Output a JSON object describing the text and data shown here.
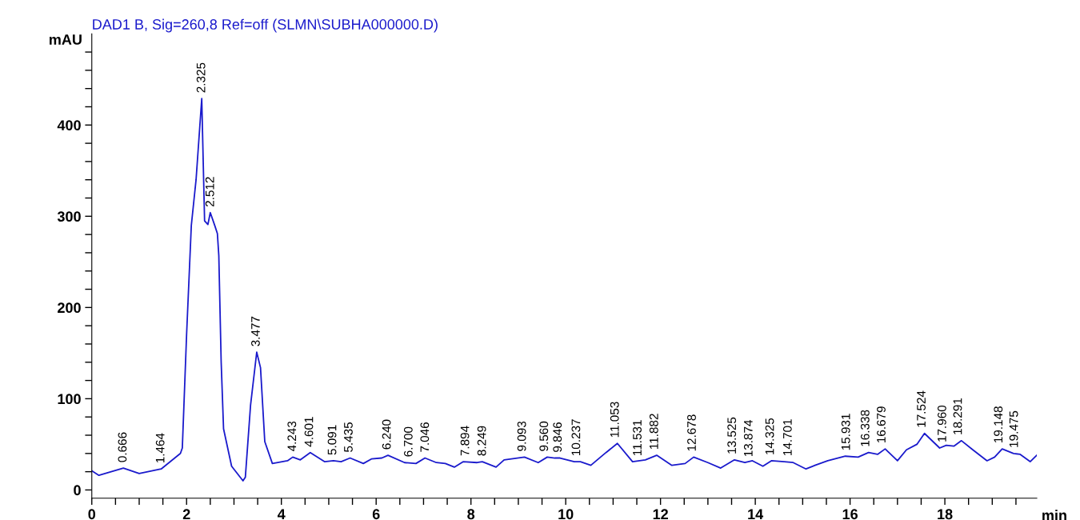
{
  "chart_data": {
    "type": "line",
    "title": "DAD1 B, Sig=260,8 Ref=off (SLMN\\SUBHA000000.D)",
    "ylabel": "mAU",
    "xlabel": "min",
    "xlim": [
      0,
      19.94
    ],
    "ylim": [
      -9,
      500
    ],
    "xticks": [
      0,
      {
        "value": 0.5,
        "label": null
      },
      {
        "value": 1,
        "label": null
      },
      {
        "value": 1.5,
        "label": null
      },
      2,
      {
        "value": 2.5,
        "label": null
      },
      {
        "value": 3,
        "label": null
      },
      {
        "value": 3.5,
        "label": null
      },
      4,
      {
        "value": 4.5,
        "label": null
      },
      {
        "value": 5,
        "label": null
      },
      {
        "value": 5.5,
        "label": null
      },
      6,
      {
        "value": 6.5,
        "label": null
      },
      {
        "value": 7,
        "label": null
      },
      {
        "value": 7.5,
        "label": null
      },
      8,
      {
        "value": 8.5,
        "label": null
      },
      {
        "value": 9,
        "label": null
      },
      {
        "value": 9.5,
        "label": null
      },
      10,
      {
        "value": 10.5,
        "label": null
      },
      {
        "value": 11,
        "label": null
      },
      {
        "value": 11.5,
        "label": null
      },
      12,
      {
        "value": 12.5,
        "label": null
      },
      {
        "value": 13,
        "label": null
      },
      {
        "value": 13.5,
        "label": null
      },
      14,
      {
        "value": 14.5,
        "label": null
      },
      {
        "value": 15,
        "label": null
      },
      {
        "value": 15.5,
        "label": null
      },
      16,
      {
        "value": 16.5,
        "label": null
      },
      {
        "value": 17,
        "label": null
      },
      {
        "value": 17.5,
        "label": null
      },
      18,
      {
        "value": 18.5,
        "label": null
      },
      {
        "value": 19,
        "label": null
      },
      {
        "value": 19.5,
        "label": null
      }
    ],
    "yticks": [
      0,
      {
        "value": 20,
        "label": null
      },
      {
        "value": 40,
        "label": null
      },
      {
        "value": 60,
        "label": null
      },
      {
        "value": 80,
        "label": null
      },
      100,
      {
        "value": 120,
        "label": null
      },
      {
        "value": 140,
        "label": null
      },
      {
        "value": 160,
        "label": null
      },
      {
        "value": 180,
        "label": null
      },
      200,
      {
        "value": 220,
        "label": null
      },
      {
        "value": 240,
        "label": null
      },
      {
        "value": 260,
        "label": null
      },
      {
        "value": 280,
        "label": null
      },
      300,
      {
        "value": 320,
        "label": null
      },
      {
        "value": 340,
        "label": null
      },
      {
        "value": 360,
        "label": null
      },
      {
        "value": 380,
        "label": null
      },
      400,
      {
        "value": 420,
        "label": null
      },
      {
        "value": 440,
        "label": null
      },
      {
        "value": 460,
        "label": null
      },
      {
        "value": 480,
        "label": null
      }
    ],
    "grid": false,
    "legend": false,
    "marker": "none",
    "line_style": "solid",
    "series": [
      {
        "color": "#1a1acc",
        "x": [
          0,
          0.15,
          0.666,
          1.0,
          1.464,
          1.87,
          1.91,
          2.0,
          2.1,
          2.2,
          2.32,
          2.38,
          2.45,
          2.5,
          2.6,
          2.65,
          2.68,
          2.73,
          2.78,
          2.95,
          3.19,
          3.24,
          3.35,
          3.48,
          3.56,
          3.65,
          3.81,
          4.13,
          4.24,
          4.4,
          4.61,
          4.91,
          5.1,
          5.26,
          5.45,
          5.73,
          5.9,
          6.12,
          6.25,
          6.6,
          6.84,
          7.03,
          7.27,
          7.46,
          7.65,
          7.84,
          8.13,
          8.24,
          8.53,
          8.7,
          9.13,
          9.42,
          9.61,
          9.77,
          9.88,
          10.18,
          10.31,
          10.53,
          10.85,
          11.09,
          11.41,
          11.68,
          11.92,
          12.24,
          12.52,
          12.7,
          13.0,
          13.27,
          13.56,
          13.78,
          13.94,
          14.16,
          14.34,
          14.61,
          14.8,
          15.07,
          15.26,
          15.53,
          15.9,
          16.17,
          16.39,
          16.58,
          16.74,
          17.0,
          17.19,
          17.41,
          17.57,
          17.89,
          18.03,
          18.19,
          18.35,
          18.59,
          18.89,
          19.05,
          19.21,
          19.45,
          19.59,
          19.8,
          19.94
        ],
        "values": [
          21,
          16,
          24,
          18,
          23,
          40,
          46,
          170,
          290,
          340,
          429,
          295,
          291,
          304,
          289,
          281,
          257,
          140,
          67,
          26,
          10,
          14,
          93,
          151,
          134,
          53,
          29,
          32,
          36,
          33,
          41,
          31,
          32,
          31,
          35,
          29,
          34,
          35,
          38,
          30,
          29,
          35,
          30,
          29,
          25,
          31,
          30,
          31,
          25,
          33,
          36,
          30,
          36,
          35,
          35,
          31,
          31,
          27,
          41,
          51,
          31,
          33,
          38,
          27,
          29,
          36,
          30,
          24,
          33,
          30,
          32,
          26,
          32,
          31,
          30,
          23,
          27,
          32,
          37,
          36,
          41,
          39,
          45,
          32,
          44,
          50,
          62,
          46,
          49,
          48,
          54,
          44,
          32,
          36,
          45,
          40,
          39,
          31,
          38
        ]
      }
    ],
    "annotations": [
      {
        "text": "0.666",
        "x": 0.666,
        "y": 24
      },
      {
        "text": "1.464",
        "x": 1.464,
        "y": 23
      },
      {
        "text": "2.325",
        "x": 2.325,
        "y": 429
      },
      {
        "text": "2.512",
        "x": 2.512,
        "y": 304
      },
      {
        "text": "3.477",
        "x": 3.477,
        "y": 151
      },
      {
        "text": "4.243",
        "x": 4.243,
        "y": 36
      },
      {
        "text": "4.601",
        "x": 4.601,
        "y": 41
      },
      {
        "text": "5.091",
        "x": 5.091,
        "y": 32
      },
      {
        "text": "5.435",
        "x": 5.435,
        "y": 35
      },
      {
        "text": "6.240",
        "x": 6.24,
        "y": 38
      },
      {
        "text": "6.700",
        "x": 6.7,
        "y": 30
      },
      {
        "text": "7.046",
        "x": 7.046,
        "y": 35
      },
      {
        "text": "7.894",
        "x": 7.894,
        "y": 31
      },
      {
        "text": "8.249",
        "x": 8.249,
        "y": 31
      },
      {
        "text": "9.093",
        "x": 9.093,
        "y": 36
      },
      {
        "text": "9.560",
        "x": 9.56,
        "y": 36
      },
      {
        "text": "9.846",
        "x": 9.846,
        "y": 35
      },
      {
        "text": "10.237",
        "x": 10.237,
        "y": 31
      },
      {
        "text": "11.053",
        "x": 11.053,
        "y": 51
      },
      {
        "text": "11.531",
        "x": 11.531,
        "y": 31
      },
      {
        "text": "11.882",
        "x": 11.882,
        "y": 38
      },
      {
        "text": "12.678",
        "x": 12.678,
        "y": 36
      },
      {
        "text": "13.525",
        "x": 13.525,
        "y": 33
      },
      {
        "text": "13.874",
        "x": 13.874,
        "y": 30
      },
      {
        "text": "14.325",
        "x": 14.325,
        "y": 32
      },
      {
        "text": "14.701",
        "x": 14.701,
        "y": 31
      },
      {
        "text": "15.931",
        "x": 15.931,
        "y": 37
      },
      {
        "text": "16.338",
        "x": 16.338,
        "y": 41
      },
      {
        "text": "16.679",
        "x": 16.679,
        "y": 45
      },
      {
        "text": "17.524",
        "x": 17.524,
        "y": 62
      },
      {
        "text": "17.960",
        "x": 17.96,
        "y": 46
      },
      {
        "text": "18.291",
        "x": 18.291,
        "y": 54
      },
      {
        "text": "19.148",
        "x": 19.148,
        "y": 45
      },
      {
        "text": "19.475",
        "x": 19.475,
        "y": 40
      }
    ]
  }
}
